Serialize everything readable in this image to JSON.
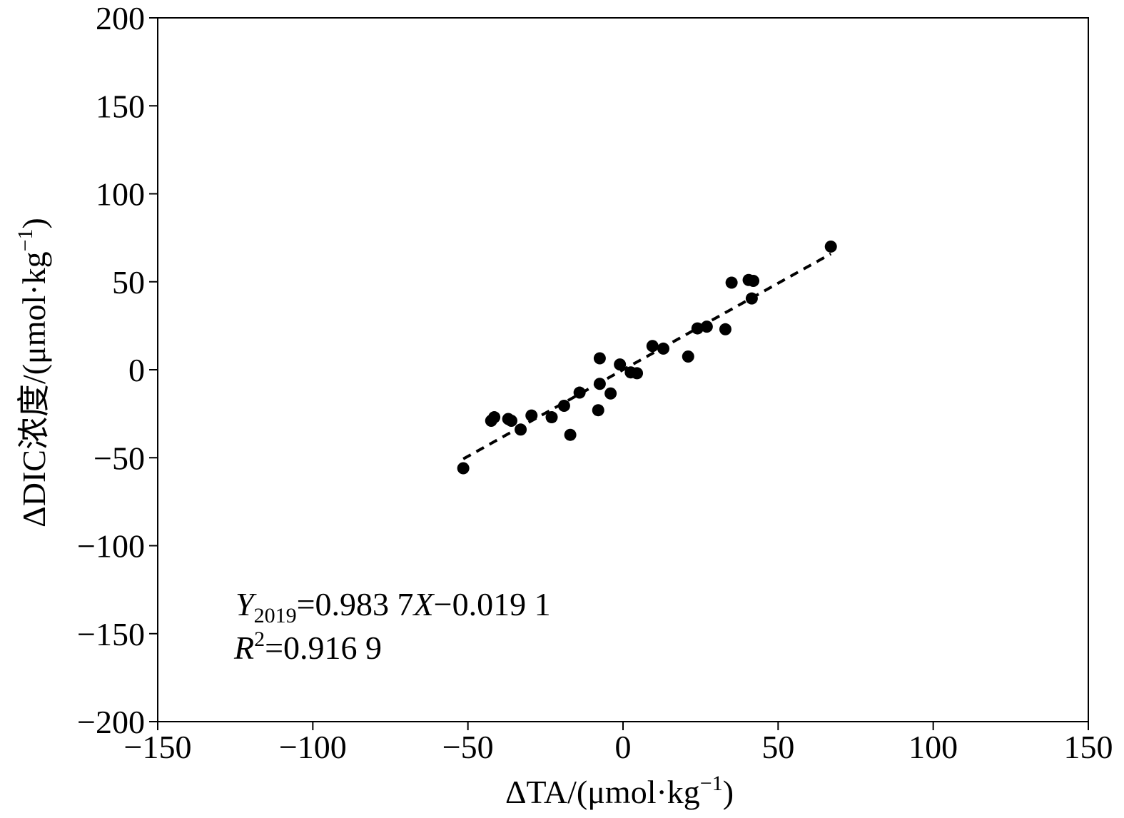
{
  "chart_data": {
    "type": "scatter",
    "xlabel": "ΔTA/(μmol·kg",
    "xlabel_sup": "−1",
    "xlabel_end": ")",
    "ylabel": "ΔDIC浓度/(μmol·kg",
    "ylabel_sup": "−1",
    "ylabel_end": ")",
    "xlim": [
      -150,
      150
    ],
    "ylim": [
      -200,
      200
    ],
    "xticks": [
      -150,
      -100,
      -50,
      0,
      50,
      100,
      150
    ],
    "xtick_labels": [
      "−150",
      "−100",
      "−50",
      "0",
      "50",
      "100",
      "150"
    ],
    "yticks": [
      -200,
      -150,
      -100,
      -50,
      0,
      50,
      100,
      150,
      200
    ],
    "ytick_labels": [
      "−200",
      "−150",
      "−100",
      "−50",
      "0",
      "50",
      "100",
      "150",
      "200"
    ],
    "grid": false,
    "series": [
      {
        "points": [
          [
            -51.5,
            -56
          ],
          [
            -42.5,
            -29
          ],
          [
            -41.5,
            -27
          ],
          [
            -37,
            -28
          ],
          [
            -36,
            -29
          ],
          [
            -33,
            -34
          ],
          [
            -29.5,
            -26
          ],
          [
            -23,
            -27
          ],
          [
            -19,
            -20.5
          ],
          [
            -17,
            -37
          ],
          [
            -14,
            -13
          ],
          [
            -8,
            -23
          ],
          [
            -7.5,
            -8
          ],
          [
            -7.5,
            6.5
          ],
          [
            -4,
            -13.5
          ],
          [
            -1,
            3
          ],
          [
            2.5,
            -1.5
          ],
          [
            4.5,
            -2
          ],
          [
            9.5,
            13.5
          ],
          [
            13,
            12
          ],
          [
            21,
            7.5
          ],
          [
            24,
            23.5
          ],
          [
            27,
            24.5
          ],
          [
            33,
            23
          ],
          [
            35,
            49.5
          ],
          [
            40.5,
            51
          ],
          [
            41.5,
            40.5
          ],
          [
            42,
            50.5
          ],
          [
            67,
            70
          ]
        ]
      }
    ],
    "fit_line": {
      "x_range": [
        -51.5,
        67
      ],
      "slope": 0.9837,
      "intercept": -0.0191,
      "style": "dashed"
    },
    "annotations": {
      "eq_y": "Y",
      "eq_sub": "2019",
      "eq_rest": "=0.983 7",
      "eq_x": "X",
      "eq_tail": "−0.019 1",
      "r2_r": "R",
      "r2_sup": "2",
      "r2_rest": "=0.916 9"
    },
    "colors": {
      "points": "#000000",
      "line": "#000000",
      "axis": "#000000"
    }
  }
}
